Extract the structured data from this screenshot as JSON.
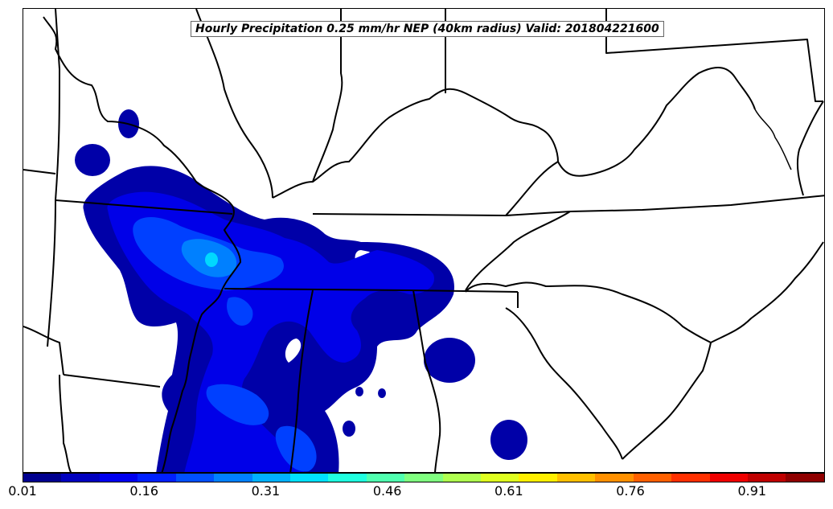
{
  "title": "Hourly Precipitation 0.25 mm/hr NEP (40km radius) Valid: 201804221600",
  "colorbar": {
    "min": 0.01,
    "max": 1.0,
    "ticks": [
      "0.01",
      "0.16",
      "0.31",
      "0.46",
      "0.61",
      "0.76",
      "0.91"
    ],
    "colors": [
      "#00008f",
      "#0000bf",
      "#0000ef",
      "#0020ff",
      "#0050ff",
      "#0080ff",
      "#00b0ff",
      "#00e0ff",
      "#20ffdf",
      "#50ffaf",
      "#80ff80",
      "#afff50",
      "#dfff20",
      "#ffef00",
      "#ffbf00",
      "#ff9000",
      "#ff6000",
      "#ff3000",
      "#ef0000",
      "#bf0000",
      "#8f0000"
    ]
  },
  "colors": {
    "fill_low": "#0000a8",
    "fill_mid": "#0000e8",
    "fill_high": "#0040ff",
    "fill_peak": "#0080ff",
    "fill_max": "#00d8ff",
    "borders": "#000000"
  }
}
